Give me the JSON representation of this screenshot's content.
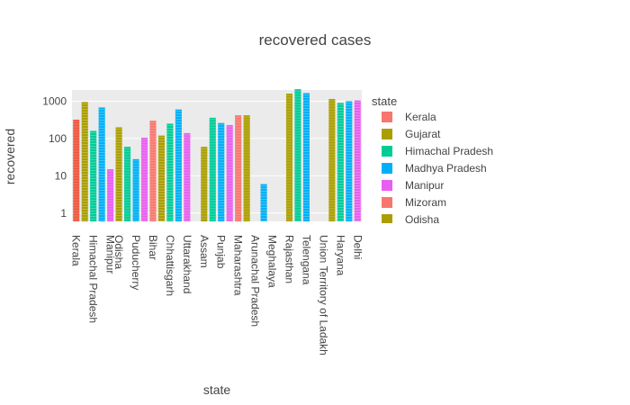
{
  "chart_data": {
    "type": "bar",
    "title": "recovered cases",
    "xlabel": "state",
    "ylabel": "recovered",
    "y_scale": "log",
    "ylim": [
      0.6,
      2000
    ],
    "y_ticks": [
      {
        "value": 1,
        "label": "1"
      },
      {
        "value": 10,
        "label": "10"
      },
      {
        "value": 100,
        "label": "100"
      },
      {
        "value": 1000,
        "label": "1000"
      }
    ],
    "categories": [
      "Kerala",
      "Himachal Pradesh",
      "Manipur",
      "Odisha",
      "Puducherry",
      "Bihar",
      "Chhattisgarh",
      "Uttarakhand",
      "Assam",
      "Punjab",
      "Maharashtra",
      "Arunachal Pradesh",
      "Meghalaya",
      "Rajasthan",
      "Telengana",
      "Union Territory of Ladakh",
      "Haryana",
      "Delhi"
    ],
    "bars": [
      {
        "state": "Kerala",
        "value": 320,
        "color": "#EF553B"
      },
      {
        "state": "",
        "value": 950,
        "color": "#AB9E00"
      },
      {
        "state": "Himachal Pradesh",
        "value": 160,
        "color": "#00CC96"
      },
      {
        "state": "",
        "value": 680,
        "color": "#00B0F6"
      },
      {
        "state": "Manipur",
        "value": 15,
        "color": "#E75EF0"
      },
      {
        "state": "Odisha",
        "value": 200,
        "color": "#AB9E00"
      },
      {
        "state": "",
        "value": 60,
        "color": "#00CC96"
      },
      {
        "state": "Puducherry",
        "value": 28,
        "color": "#00B0F6"
      },
      {
        "state": "",
        "value": 105,
        "color": "#E75EF0"
      },
      {
        "state": "Bihar",
        "value": 300,
        "color": "#F8766D"
      },
      {
        "state": "",
        "value": 120,
        "color": "#AB9E00"
      },
      {
        "state": "Chhattisgarh",
        "value": 250,
        "color": "#00CC96"
      },
      {
        "state": "",
        "value": 600,
        "color": "#00B0F6"
      },
      {
        "state": "Uttarakhand",
        "value": 140,
        "color": "#E75EF0"
      },
      {
        "state": "",
        "value": null,
        "color": "#F8766D"
      },
      {
        "state": "Assam",
        "value": 60,
        "color": "#AB9E00"
      },
      {
        "state": "",
        "value": 360,
        "color": "#00CC96"
      },
      {
        "state": "Punjab",
        "value": 260,
        "color": "#00B0F6"
      },
      {
        "state": "",
        "value": 230,
        "color": "#E75EF0"
      },
      {
        "state": "Maharashtra",
        "value": 420,
        "color": "#F8766D"
      },
      {
        "state": "",
        "value": 420,
        "color": "#AB9E00"
      },
      {
        "state": "Arunachal Pradesh",
        "value": null,
        "color": "#00CC96"
      },
      {
        "state": "",
        "value": 6,
        "color": "#00B0F6"
      },
      {
        "state": "Meghalaya",
        "value": null,
        "color": "#E75EF0"
      },
      {
        "state": "",
        "value": null,
        "color": "#F8766D"
      },
      {
        "state": "Rajasthan",
        "value": 1600,
        "color": "#AB9E00"
      },
      {
        "state": "",
        "value": 2100,
        "color": "#00CC96"
      },
      {
        "state": "Telengana",
        "value": 1650,
        "color": "#00B0F6"
      },
      {
        "state": "",
        "value": null,
        "color": "#E75EF0"
      },
      {
        "state": "Union Territory of Ladakh",
        "value": null,
        "color": "#F8766D"
      },
      {
        "state": "",
        "value": 1150,
        "color": "#AB9E00"
      },
      {
        "state": "Haryana",
        "value": 900,
        "color": "#00CC96"
      },
      {
        "state": "",
        "value": 1000,
        "color": "#00B0F6"
      },
      {
        "state": "Delhi",
        "value": 1050,
        "color": "#E75EF0"
      }
    ],
    "legend": {
      "title": "state",
      "placement": "right",
      "entries": [
        {
          "name": "Kerala",
          "color": "#F8766D"
        },
        {
          "name": "Gujarat",
          "color": "#AB9E00"
        },
        {
          "name": "Himachal Pradesh",
          "color": "#00CC96"
        },
        {
          "name": "Madhya Pradesh",
          "color": "#00B0F6"
        },
        {
          "name": "Manipur",
          "color": "#E75EF0"
        },
        {
          "name": "Mizoram",
          "color": "#F8766D"
        },
        {
          "name": "Odisha",
          "color": "#AB9E00"
        }
      ]
    },
    "grid": true
  }
}
